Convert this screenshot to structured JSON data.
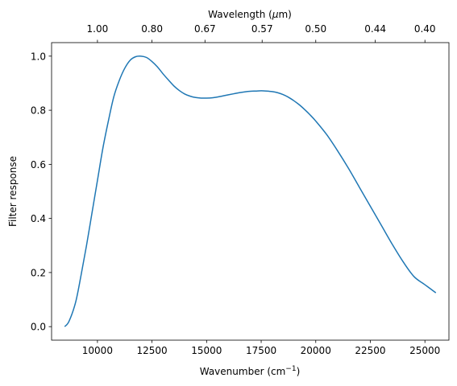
{
  "chart_data": {
    "type": "line",
    "xlabel": "Wavenumber (cm",
    "xlabel_sup": "−1",
    "xlabel_close": ")",
    "ylabel": "Filter response",
    "top_label_prefix": "Wavelength (",
    "top_label_mu": "μ",
    "top_label_suffix": "m)",
    "xlim": [
      7900,
      26100
    ],
    "ylim": [
      -0.05,
      1.05
    ],
    "xticks": [
      10000,
      12500,
      15000,
      17500,
      20000,
      22500,
      25000
    ],
    "xtick_labels": [
      "10000",
      "12500",
      "15000",
      "17500",
      "20000",
      "22500",
      "25000"
    ],
    "yticks": [
      0.0,
      0.2,
      0.4,
      0.6,
      0.8,
      1.0
    ],
    "ytick_labels": [
      "0.0",
      "0.2",
      "0.4",
      "0.6",
      "0.8",
      "1.0"
    ],
    "top_ticks_wavelength_um": [
      1.0,
      0.8,
      0.67,
      0.57,
      0.5,
      0.44,
      0.4
    ],
    "top_tick_labels": [
      "1.00",
      "0.80",
      "0.67",
      "0.57",
      "0.50",
      "0.44",
      "0.40"
    ],
    "grid": false,
    "line_color": "#1f77b4",
    "series": [
      {
        "x": [
          8500,
          8700,
          9000,
          9250,
          9500,
          9750,
          10000,
          10250,
          10500,
          10750,
          11000,
          11250,
          11500,
          11750,
          12000,
          12250,
          12500,
          12750,
          13000,
          13250,
          13500,
          13750,
          14000,
          14250,
          14500,
          14750,
          15000,
          15250,
          15500,
          15750,
          16000,
          16250,
          16500,
          16750,
          17000,
          17250,
          17500,
          17750,
          18000,
          18250,
          18500,
          18750,
          19000,
          19250,
          19500,
          19750,
          20000,
          20500,
          21000,
          21500,
          22000,
          22500,
          23000,
          23500,
          24000,
          24500,
          25000,
          25500
        ],
        "y": [
          0.0,
          0.02,
          0.09,
          0.19,
          0.3,
          0.42,
          0.54,
          0.66,
          0.76,
          0.85,
          0.91,
          0.955,
          0.985,
          0.998,
          1.0,
          0.995,
          0.98,
          0.96,
          0.935,
          0.912,
          0.89,
          0.873,
          0.86,
          0.852,
          0.847,
          0.845,
          0.845,
          0.846,
          0.849,
          0.853,
          0.857,
          0.861,
          0.865,
          0.868,
          0.87,
          0.871,
          0.872,
          0.871,
          0.869,
          0.865,
          0.858,
          0.848,
          0.835,
          0.82,
          0.802,
          0.782,
          0.76,
          0.71,
          0.65,
          0.585,
          0.515,
          0.445,
          0.375,
          0.305,
          0.24,
          0.185,
          0.155,
          0.125
        ]
      }
    ]
  }
}
